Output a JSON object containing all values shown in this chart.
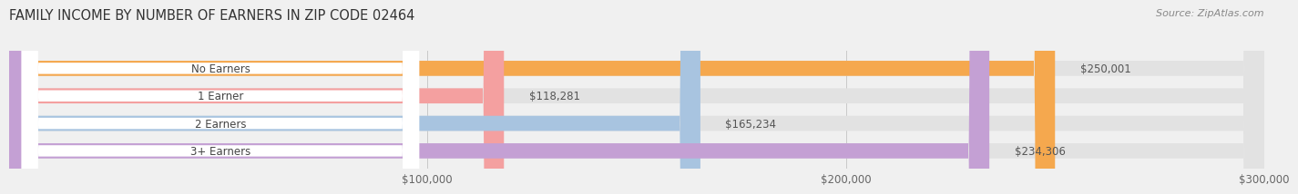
{
  "title": "FAMILY INCOME BY NUMBER OF EARNERS IN ZIP CODE 02464",
  "source": "Source: ZipAtlas.com",
  "categories": [
    "No Earners",
    "1 Earner",
    "2 Earners",
    "3+ Earners"
  ],
  "values": [
    250001,
    118281,
    165234,
    234306
  ],
  "bar_colors": [
    "#F5A84E",
    "#F4A0A0",
    "#A8C4E0",
    "#C4A0D4"
  ],
  "value_labels": [
    "$250,001",
    "$118,281",
    "$165,234",
    "$234,306"
  ],
  "xmin": 0,
  "xmax": 300000,
  "xticks": [
    100000,
    200000,
    300000
  ],
  "xtick_labels": [
    "$100,000",
    "$200,000",
    "$300,000"
  ],
  "bg_color": "#f0f0f0",
  "bar_bg_color": "#e2e2e2",
  "title_fontsize": 10.5,
  "source_fontsize": 8,
  "label_fontsize": 8.5,
  "value_fontsize": 8.5
}
